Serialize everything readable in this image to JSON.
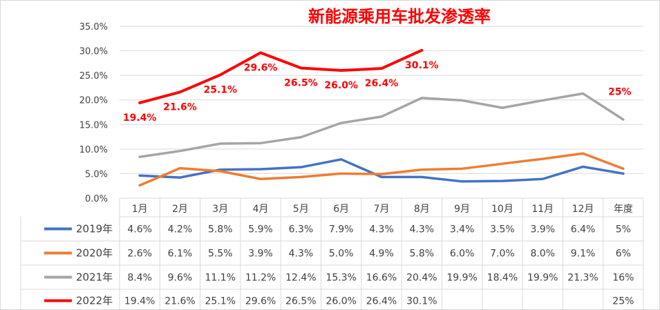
{
  "chart_data": {
    "type": "line",
    "title": "新能源乘用车批发渗透率",
    "categories": [
      "1月",
      "2月",
      "3月",
      "4月",
      "5月",
      "6月",
      "7月",
      "8月",
      "9月",
      "10月",
      "11月",
      "12月",
      "年度"
    ],
    "y_ticks": [
      "35.0%",
      "30.0%",
      "25.0%",
      "20.0%",
      "15.0%",
      "10.0%",
      "5.0%",
      "0.0%"
    ],
    "ylim": [
      0,
      35
    ],
    "grid": true,
    "legend_placement": "data-table-left",
    "series": [
      {
        "name": "2019年",
        "color": "#4472c4",
        "values": [
          4.6,
          4.2,
          5.8,
          5.9,
          6.3,
          7.9,
          4.3,
          4.3,
          3.4,
          3.5,
          3.9,
          6.4,
          5
        ],
        "labels": [
          "4.6%",
          "4.2%",
          "5.8%",
          "5.9%",
          "6.3%",
          "7.9%",
          "4.3%",
          "4.3%",
          "3.4%",
          "3.5%",
          "3.9%",
          "6.4%",
          "5%"
        ]
      },
      {
        "name": "2020年",
        "color": "#ed7d31",
        "values": [
          2.6,
          6.1,
          5.5,
          3.9,
          4.3,
          5.0,
          4.9,
          5.8,
          6.0,
          7.0,
          8.0,
          9.1,
          6
        ],
        "labels": [
          "2.6%",
          "6.1%",
          "5.5%",
          "3.9%",
          "4.3%",
          "5.0%",
          "4.9%",
          "5.8%",
          "6.0%",
          "7.0%",
          "8.0%",
          "9.1%",
          "6%"
        ]
      },
      {
        "name": "2021年",
        "color": "#a5a5a5",
        "values": [
          8.4,
          9.6,
          11.1,
          11.2,
          12.4,
          15.3,
          16.6,
          20.4,
          19.9,
          18.4,
          19.9,
          21.3,
          16
        ],
        "labels": [
          "8.4%",
          "9.6%",
          "11.1%",
          "11.2%",
          "12.4%",
          "15.3%",
          "16.6%",
          "20.4%",
          "19.9%",
          "18.4%",
          "19.9%",
          "21.3%",
          "16%"
        ]
      },
      {
        "name": "2022年",
        "color": "#ff0000",
        "values": [
          19.4,
          21.6,
          25.1,
          29.6,
          26.5,
          26.0,
          26.4,
          30.1,
          null,
          null,
          null,
          null,
          25
        ],
        "labels": [
          "19.4%",
          "21.6%",
          "25.1%",
          "29.6%",
          "26.5%",
          "26.0%",
          "26.4%",
          "30.1%",
          "",
          "",
          "",
          "",
          "25%"
        ],
        "data_labels": [
          "19.4%",
          "21.6%",
          "25.1%",
          "29.6%",
          "26.5%",
          "26.0%",
          "26.4%",
          "30.1%",
          null,
          null,
          null,
          null,
          "25%"
        ]
      }
    ]
  }
}
